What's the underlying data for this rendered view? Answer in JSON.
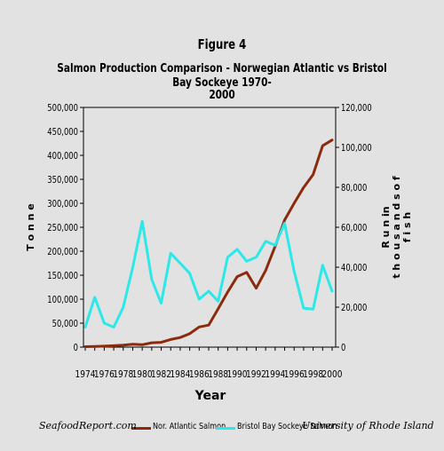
{
  "chart_data": {
    "type": "line",
    "title": "Figure 4",
    "subtitle_line1": "Salmon Production Comparison - Norwegian Atlantic vs Bristol Bay Sockeye 1970-",
    "subtitle_line2": "2000",
    "xlabel": "Year",
    "ylabel_left": "T o n n e",
    "ylabel_right_line1": "R u n  in",
    "ylabel_right_line2": "t h o u s a n d s  o f",
    "ylabel_right_line3": "f i s h",
    "x": [
      1974,
      1975,
      1976,
      1977,
      1978,
      1979,
      1980,
      1981,
      1982,
      1983,
      1984,
      1985,
      1986,
      1987,
      1988,
      1989,
      1990,
      1991,
      1992,
      1993,
      1994,
      1995,
      1996,
      1997,
      1998,
      1999,
      2000
    ],
    "x_tick_labels": [
      "1974",
      "1976",
      "1978",
      "1980",
      "1982",
      "1984",
      "1986",
      "1988",
      "1990",
      "1992",
      "1994",
      "1996",
      "1998",
      "2000"
    ],
    "y_left_ticks": [
      "0",
      "50,000",
      "100,000",
      "150,000",
      "200,000",
      "250,000",
      "300,000",
      "350,000",
      "400,000",
      "450,000",
      "500,000"
    ],
    "y_right_ticks": [
      "0",
      "20,000",
      "40,000",
      "60,000",
      "80,000",
      "100,000",
      "120,000"
    ],
    "ylim_left": [
      0,
      500000
    ],
    "ylim_right": [
      0,
      120000
    ],
    "series": [
      {
        "name": "Nor. Atlantic Salmon",
        "axis": "left",
        "color": "#8b2a0c",
        "values": [
          1000,
          1500,
          2000,
          3000,
          4000,
          6000,
          5000,
          9000,
          10000,
          16000,
          20000,
          28000,
          42000,
          46000,
          80000,
          115000,
          147000,
          156000,
          123000,
          160000,
          210000,
          265000,
          300000,
          333000,
          360000,
          420000,
          432000
        ]
      },
      {
        "name": "Bristol Bay Sockeye Salmon",
        "axis": "right",
        "color": "#2de8e8",
        "values": [
          10000,
          25000,
          12000,
          10000,
          20000,
          40000,
          63000,
          34000,
          22000,
          47000,
          42000,
          37000,
          24000,
          28000,
          23000,
          45000,
          49000,
          43000,
          45000,
          53000,
          51000,
          62000,
          38000,
          19500,
          19000,
          41000,
          28000
        ]
      }
    ],
    "grid": false,
    "legend_placement": "bottom"
  },
  "footer": {
    "left": "SeafoodReport.com",
    "right": "University of Rhode Island"
  }
}
